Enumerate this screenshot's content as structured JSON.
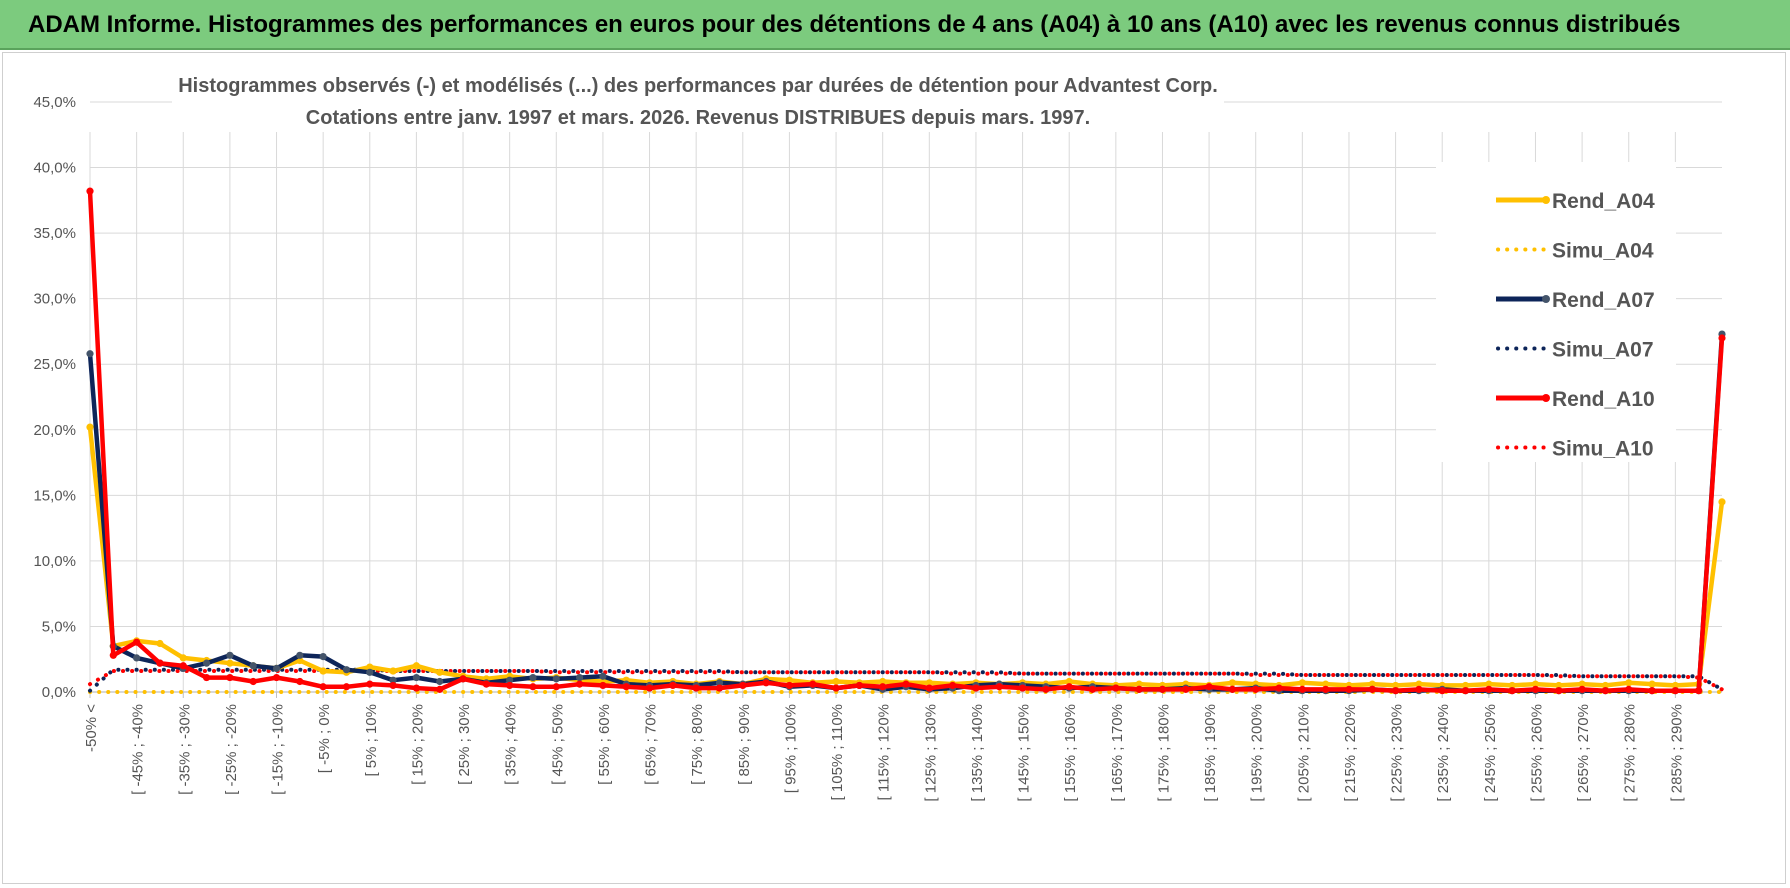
{
  "banner": {
    "title": "ADAM Informe. Histogrammes des performances en euros pour des détentions de 4 ans (A04) à 10 ans (A10) avec les revenus connus distribués"
  },
  "colors": {
    "banner_bg": "#7ccb7e",
    "a04": "#ffc000",
    "a07": "#0d2559",
    "a10": "#ff0000",
    "a07_marker": "#44546a",
    "grid": "#d9d9d9"
  },
  "chart_data": {
    "type": "line",
    "title_line1": "Histogrammes observés (-) et modélisés (...) des performances par durées de détention pour Advantest Corp.",
    "title_line2": "Cotations entre janv. 1997 et mars. 2026. Revenus DISTRIBUES depuis mars. 1997.",
    "ylim": [
      0,
      45
    ],
    "y_ticks": [
      "0,0%",
      "5,0%",
      "10,0%",
      "15,0%",
      "20,0%",
      "25,0%",
      "30,0%",
      "35,0%",
      "40,0%",
      "45,0%"
    ],
    "grid": true,
    "legend_position": "right",
    "x_labels": [
      "-50% <",
      "[ -45% ; -40%",
      "[ -35% ; -30%",
      "[ -25% ; -20%",
      "[ -15% ; -10%",
      "[ -5% ; 0%",
      "[ 5% ; 10%",
      "[ 15% ; 20%",
      "[ 25% ; 30%",
      "[ 35% ; 40%",
      "[ 45% ; 50%",
      "[ 55% ; 60%",
      "[ 65% ; 70%",
      "[ 75% ; 80%",
      "[ 85% ; 90%",
      "[ 95% ; 100%",
      "[ 105% ; 110%",
      "[ 115% ; 120%",
      "[ 125% ; 130%",
      "[ 135% ; 140%",
      "[ 145% ; 150%",
      "[ 155% ; 160%",
      "[ 165% ; 170%",
      "[ 175% ; 180%",
      "[ 185% ; 190%",
      "[ 195% ; 200%",
      "[ 205% ; 210%",
      "[ 215% ; 220%",
      "[ 225% ; 230%",
      "[ 235% ; 240%",
      "[ 245% ; 250%",
      "[ 255% ; 260%",
      "[ 265% ; 270%",
      "[ 275% ; 280%",
      "[ 285% ; 290%"
    ],
    "series": [
      {
        "name": "Rend_A04",
        "style": "solid",
        "color": "#ffc000",
        "values": [
          20.2,
          3.5,
          3.9,
          3.7,
          2.6,
          2.4,
          2.2,
          2.0,
          1.8,
          2.4,
          1.6,
          1.5,
          1.9,
          1.6,
          2.0,
          1.5,
          1.2,
          1.0,
          1.2,
          1.0,
          1.1,
          0.9,
          0.8,
          0.9,
          0.7,
          0.8,
          0.6,
          0.8,
          0.6,
          1.0,
          0.9,
          0.7,
          0.8,
          0.7,
          0.8,
          0.7,
          0.7,
          0.6,
          0.7,
          0.6,
          0.7,
          0.6,
          0.8,
          0.6,
          0.5,
          0.6,
          0.5,
          0.6,
          0.5,
          0.7,
          0.6,
          0.5,
          0.7,
          0.6,
          0.5,
          0.6,
          0.5,
          0.6,
          0.5,
          0.5,
          0.6,
          0.5,
          0.6,
          0.5,
          0.6,
          0.5,
          0.7,
          0.6,
          0.5,
          0.6,
          14.5
        ]
      },
      {
        "name": "Simu_A04",
        "style": "dotted",
        "color": "#ffc000",
        "values": [
          0.0,
          0.0,
          0.0,
          0.0,
          0.0,
          0.0,
          0.0,
          0.0,
          0.0,
          0.0,
          0.0,
          0.0,
          0.0,
          0.0,
          0.0,
          0.0,
          0.0,
          0.0,
          0.0,
          0.0,
          0.0,
          0.0,
          0.0,
          0.0,
          0.0,
          0.0,
          0.0,
          0.0,
          0.0,
          0.0,
          0.0,
          0.0,
          0.0,
          0.0,
          0.0,
          0.0,
          0.0,
          0.0,
          0.0,
          0.0,
          0.0,
          0.0,
          0.0,
          0.0,
          0.0,
          0.0,
          0.0,
          0.0,
          0.0,
          0.0,
          0.0,
          0.0,
          0.0,
          0.0,
          0.0,
          0.0,
          0.0,
          0.0,
          0.0,
          0.0,
          0.0,
          0.0,
          0.0,
          0.0,
          0.0,
          0.0,
          0.0,
          0.0,
          0.0,
          0.0,
          0.0
        ]
      },
      {
        "name": "Rend_A07",
        "style": "solid",
        "color": "#0d2559",
        "values": [
          25.8,
          3.5,
          2.6,
          2.2,
          1.8,
          2.2,
          2.8,
          2.0,
          1.8,
          2.8,
          2.7,
          1.7,
          1.5,
          0.9,
          1.1,
          0.8,
          1.0,
          0.7,
          0.9,
          1.1,
          1.0,
          1.1,
          1.2,
          0.6,
          0.5,
          0.6,
          0.5,
          0.7,
          0.6,
          0.8,
          0.4,
          0.5,
          0.3,
          0.5,
          0.2,
          0.4,
          0.2,
          0.3,
          0.5,
          0.6,
          0.5,
          0.4,
          0.3,
          0.4,
          0.3,
          0.2,
          0.2,
          0.3,
          0.2,
          0.2,
          0.3,
          0.1,
          0.1,
          0.1,
          0.1,
          0.2,
          0.1,
          0.1,
          0.2,
          0.1,
          0.1,
          0.1,
          0.1,
          0.1,
          0.1,
          0.1,
          0.1,
          0.1,
          0.1,
          0.1,
          27.3
        ]
      },
      {
        "name": "Simu_A07",
        "style": "dotted",
        "color": "#0d2559",
        "values": [
          0.1,
          1.7,
          1.7,
          1.7,
          1.7,
          1.7,
          1.7,
          1.7,
          1.7,
          1.7,
          1.7,
          1.7,
          1.7,
          1.6,
          1.6,
          1.6,
          1.6,
          1.6,
          1.6,
          1.6,
          1.6,
          1.6,
          1.6,
          1.6,
          1.6,
          1.6,
          1.6,
          1.6,
          1.5,
          1.5,
          1.5,
          1.5,
          1.5,
          1.5,
          1.5,
          1.5,
          1.5,
          1.5,
          1.5,
          1.5,
          1.4,
          1.4,
          1.4,
          1.4,
          1.4,
          1.4,
          1.4,
          1.4,
          1.4,
          1.4,
          1.4,
          1.4,
          1.3,
          1.3,
          1.3,
          1.3,
          1.3,
          1.3,
          1.3,
          1.3,
          1.3,
          1.3,
          1.3,
          1.3,
          1.2,
          1.2,
          1.2,
          1.2,
          1.2,
          1.2,
          0.2
        ]
      },
      {
        "name": "Rend_A10",
        "style": "solid",
        "color": "#ff0000",
        "values": [
          38.2,
          2.8,
          3.8,
          2.2,
          2.0,
          1.1,
          1.1,
          0.8,
          1.1,
          0.8,
          0.4,
          0.4,
          0.6,
          0.5,
          0.3,
          0.2,
          1.0,
          0.6,
          0.5,
          0.4,
          0.4,
          0.6,
          0.5,
          0.4,
          0.3,
          0.5,
          0.3,
          0.3,
          0.5,
          0.7,
          0.5,
          0.6,
          0.3,
          0.5,
          0.4,
          0.6,
          0.3,
          0.5,
          0.3,
          0.4,
          0.3,
          0.2,
          0.4,
          0.2,
          0.3,
          0.2,
          0.2,
          0.2,
          0.4,
          0.2,
          0.2,
          0.3,
          0.2,
          0.2,
          0.2,
          0.2,
          0.1,
          0.2,
          0.1,
          0.1,
          0.2,
          0.1,
          0.2,
          0.1,
          0.2,
          0.1,
          0.2,
          0.1,
          0.1,
          0.1,
          27.0
        ]
      },
      {
        "name": "Simu_A10",
        "style": "dotted",
        "color": "#ff0000",
        "values": [
          0.6,
          1.6,
          1.6,
          1.6,
          1.6,
          1.6,
          1.6,
          1.6,
          1.6,
          1.6,
          1.6,
          1.6,
          1.6,
          1.6,
          1.6,
          1.6,
          1.6,
          1.6,
          1.6,
          1.6,
          1.5,
          1.5,
          1.5,
          1.5,
          1.5,
          1.5,
          1.5,
          1.5,
          1.5,
          1.5,
          1.5,
          1.5,
          1.5,
          1.5,
          1.5,
          1.5,
          1.5,
          1.4,
          1.4,
          1.4,
          1.4,
          1.4,
          1.4,
          1.4,
          1.4,
          1.4,
          1.4,
          1.4,
          1.4,
          1.4,
          1.3,
          1.3,
          1.3,
          1.3,
          1.3,
          1.3,
          1.3,
          1.3,
          1.3,
          1.3,
          1.3,
          1.3,
          1.3,
          1.2,
          1.2,
          1.2,
          1.2,
          1.2,
          1.2,
          1.1,
          0.2
        ]
      }
    ]
  }
}
